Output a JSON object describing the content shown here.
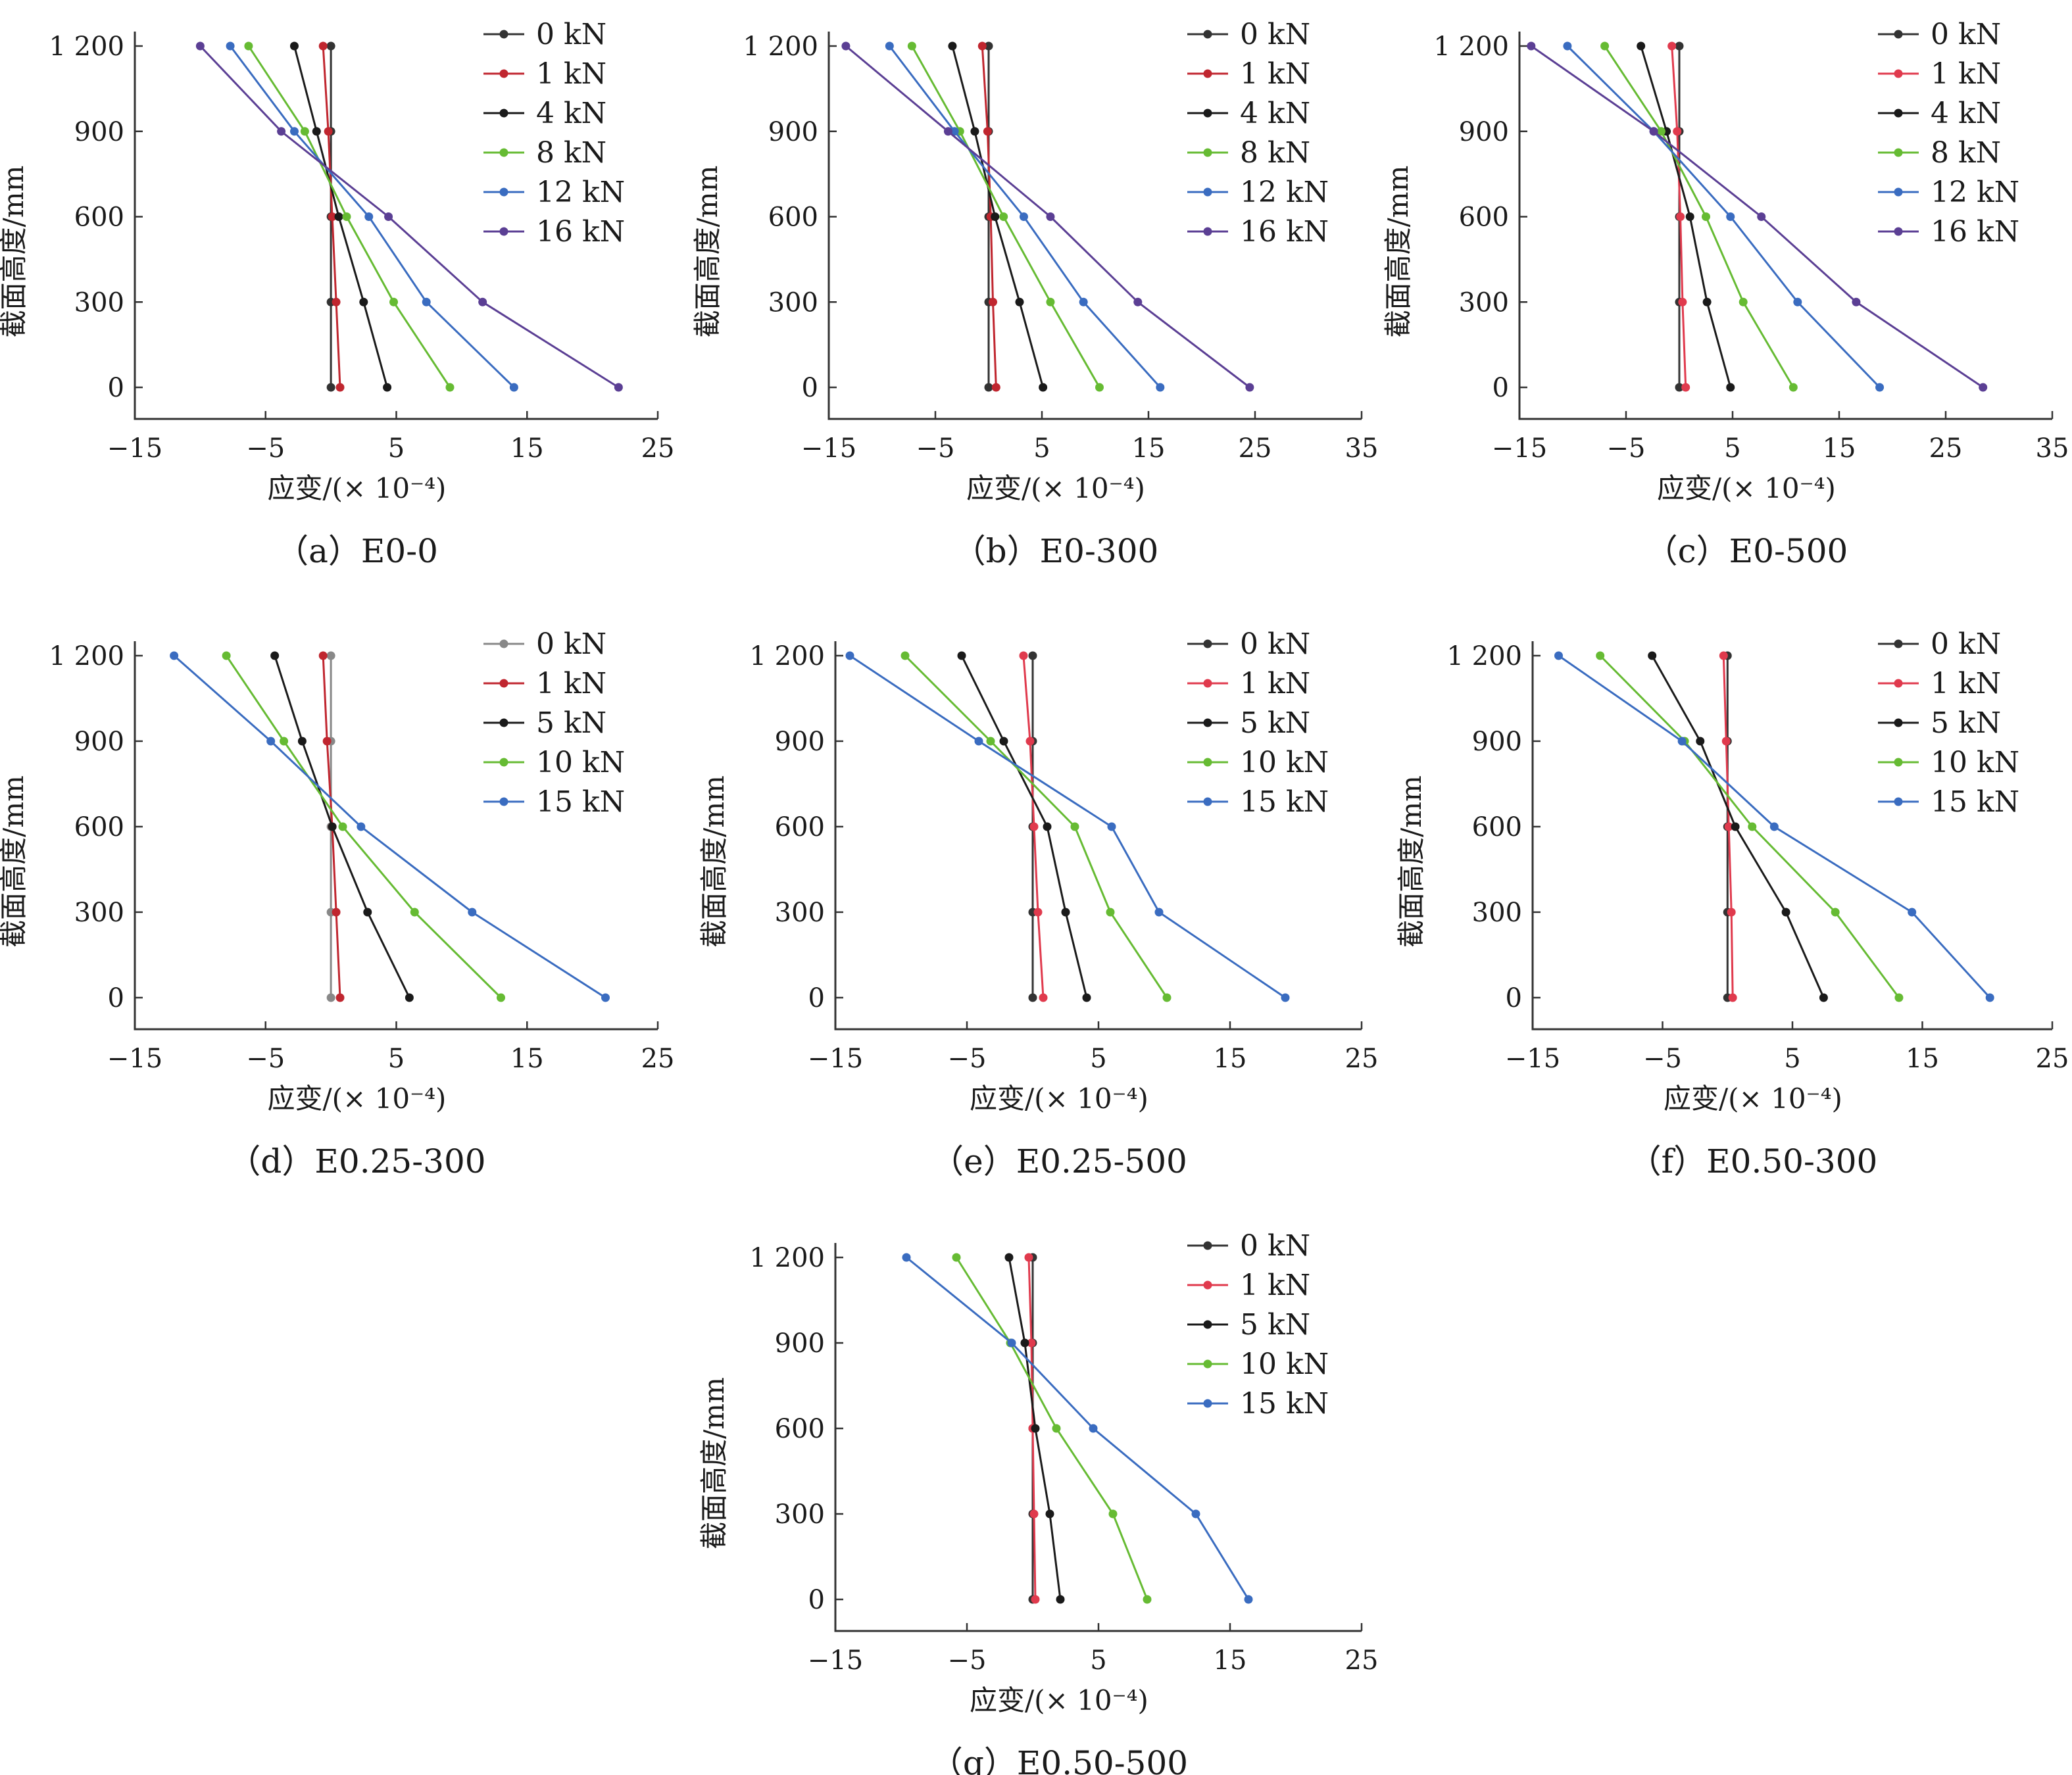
{
  "figure": {
    "x_axis_label": "应变/(× 10⁻⁴)",
    "y_axis_label": "截面高度/mm",
    "series_colors": {
      "0 kN": "#333333",
      "1 kN": "#cc2b3c",
      "load_a": "#1a1a1a",
      "load_b": "#66bb33",
      "load_c": "#3a6cc0",
      "load_d": "#5b3f94",
      "gray": "#888888"
    }
  },
  "chart_data": [
    {
      "type": "line",
      "caption": "（a）E0-0",
      "xlim": [
        -15,
        25
      ],
      "xticks": [
        -15,
        -5,
        5,
        15,
        25
      ],
      "xtick_labels": [
        "−15",
        "−5",
        "5",
        "15",
        "25"
      ],
      "ylim": [
        0,
        1200
      ],
      "yticks": [
        0,
        300,
        600,
        900,
        1200
      ],
      "ytick_labels": [
        "0",
        "300",
        "600",
        "900",
        "1 200"
      ],
      "x_label": "应变/(× 10⁻⁴)",
      "y_label": "截面高度/mm",
      "legend_position": "top-right",
      "series": [
        {
          "name": "0 kN",
          "color": "#333333",
          "x": [
            0.0,
            0.0,
            0.0,
            0.0,
            0.0
          ],
          "y": [
            0,
            300,
            600,
            900,
            1200
          ]
        },
        {
          "name": "1 kN",
          "color": "#c0262f",
          "x": [
            0.7,
            0.4,
            0.1,
            -0.2,
            -0.6
          ],
          "y": [
            0,
            300,
            600,
            900,
            1200
          ]
        },
        {
          "name": "4 kN",
          "color": "#1a1a1a",
          "x": [
            4.3,
            2.5,
            0.6,
            -1.1,
            -2.8
          ],
          "y": [
            0,
            300,
            600,
            900,
            1200
          ]
        },
        {
          "name": "8 kN",
          "color": "#66bb33",
          "x": [
            9.1,
            4.8,
            1.2,
            -2.0,
            -6.3
          ],
          "y": [
            0,
            300,
            600,
            900,
            1200
          ]
        },
        {
          "name": "12 kN",
          "color": "#3a6cc0",
          "x": [
            14.0,
            7.3,
            2.9,
            -2.8,
            -7.7
          ],
          "y": [
            0,
            300,
            600,
            900,
            1200
          ]
        },
        {
          "name": "16 kN",
          "color": "#5b3f94",
          "x": [
            22.0,
            11.6,
            4.4,
            -3.8,
            -10.0
          ],
          "y": [
            0,
            300,
            600,
            900,
            1200
          ]
        }
      ]
    },
    {
      "type": "line",
      "caption": "（b）E0-300",
      "xlim": [
        -15,
        35
      ],
      "xticks": [
        -15,
        -5,
        5,
        15,
        25,
        35
      ],
      "xtick_labels": [
        "−15",
        "−5",
        "5",
        "15",
        "25",
        "35"
      ],
      "ylim": [
        0,
        1200
      ],
      "yticks": [
        0,
        300,
        600,
        900,
        1200
      ],
      "ytick_labels": [
        "0",
        "300",
        "600",
        "900",
        "1 200"
      ],
      "x_label": "应变/(× 10⁻⁴)",
      "y_label": "截面高度/mm",
      "legend_position": "top-right",
      "series": [
        {
          "name": "0 kN",
          "color": "#333333",
          "x": [
            0.0,
            0.0,
            0.0,
            0.0,
            0.0
          ],
          "y": [
            0,
            300,
            600,
            900,
            1200
          ]
        },
        {
          "name": "1 kN",
          "color": "#c0262f",
          "x": [
            0.7,
            0.4,
            0.2,
            -0.1,
            -0.6
          ],
          "y": [
            0,
            300,
            600,
            900,
            1200
          ]
        },
        {
          "name": "4 kN",
          "color": "#1a1a1a",
          "x": [
            5.1,
            2.9,
            0.6,
            -1.3,
            -3.4
          ],
          "y": [
            0,
            300,
            600,
            900,
            1200
          ]
        },
        {
          "name": "8 kN",
          "color": "#66bb33",
          "x": [
            10.4,
            5.8,
            1.4,
            -2.7,
            -7.2
          ],
          "y": [
            0,
            300,
            600,
            900,
            1200
          ]
        },
        {
          "name": "12 kN",
          "color": "#3a6cc0",
          "x": [
            16.1,
            8.9,
            3.3,
            -3.2,
            -9.3
          ],
          "y": [
            0,
            300,
            600,
            900,
            1200
          ]
        },
        {
          "name": "16 kN",
          "color": "#5b3f94",
          "x": [
            24.5,
            14.0,
            5.8,
            -3.8,
            -13.4
          ],
          "y": [
            0,
            300,
            600,
            900,
            1200
          ]
        }
      ]
    },
    {
      "type": "line",
      "caption": "（c）E0-500",
      "xlim": [
        -15,
        35
      ],
      "xticks": [
        -15,
        -5,
        5,
        15,
        25,
        35
      ],
      "xtick_labels": [
        "−15",
        "−5",
        "5",
        "15",
        "25",
        "35"
      ],
      "ylim": [
        0,
        1200
      ],
      "yticks": [
        0,
        300,
        600,
        900,
        1200
      ],
      "ytick_labels": [
        "0",
        "300",
        "600",
        "900",
        "1 200"
      ],
      "x_label": "应变/(× 10⁻⁴)",
      "y_label": "截面高度/mm",
      "legend_position": "top-right",
      "series": [
        {
          "name": "0 kN",
          "color": "#333333",
          "x": [
            0.0,
            0.0,
            0.0,
            0.0,
            0.0
          ],
          "y": [
            0,
            300,
            600,
            900,
            1200
          ]
        },
        {
          "name": "1 kN",
          "color": "#e03a4d",
          "x": [
            0.6,
            0.3,
            0.1,
            -0.2,
            -0.7
          ],
          "y": [
            0,
            300,
            600,
            900,
            1200
          ]
        },
        {
          "name": "4 kN",
          "color": "#1a1a1a",
          "x": [
            4.8,
            2.6,
            1.0,
            -1.2,
            -3.6
          ],
          "y": [
            0,
            300,
            600,
            900,
            1200
          ]
        },
        {
          "name": "8 kN",
          "color": "#66bb33",
          "x": [
            10.7,
            6.0,
            2.5,
            -1.7,
            -7.0
          ],
          "y": [
            0,
            300,
            600,
            900,
            1200
          ]
        },
        {
          "name": "12 kN",
          "color": "#3a6cc0",
          "x": [
            18.8,
            11.1,
            4.8,
            -2.4,
            -10.5
          ],
          "y": [
            0,
            300,
            600,
            900,
            1200
          ]
        },
        {
          "name": "16 kN",
          "color": "#5b3f94",
          "x": [
            28.5,
            16.6,
            7.7,
            -2.4,
            -13.9
          ],
          "y": [
            0,
            300,
            600,
            900,
            1200
          ]
        }
      ]
    },
    {
      "type": "line",
      "caption": "（d）E0.25-300",
      "xlim": [
        -15,
        25
      ],
      "xticks": [
        -15,
        -5,
        5,
        15,
        25
      ],
      "xtick_labels": [
        "−15",
        "−5",
        "5",
        "15",
        "25"
      ],
      "ylim": [
        0,
        1200
      ],
      "yticks": [
        0,
        300,
        600,
        900,
        1200
      ],
      "ytick_labels": [
        "0",
        "300",
        "600",
        "900",
        "1 200"
      ],
      "x_label": "应变/(× 10⁻⁴)",
      "y_label": "截面高度/mm",
      "legend_position": "top-right",
      "series": [
        {
          "name": "0 kN",
          "color": "#888888",
          "x": [
            0.0,
            0.0,
            0.0,
            0.0,
            0.0
          ],
          "y": [
            0,
            300,
            600,
            900,
            1200
          ]
        },
        {
          "name": "1 kN",
          "color": "#c0262f",
          "x": [
            0.7,
            0.4,
            0.1,
            -0.3,
            -0.6
          ],
          "y": [
            0,
            300,
            600,
            900,
            1200
          ]
        },
        {
          "name": "5 kN",
          "color": "#1a1a1a",
          "x": [
            6.0,
            2.8,
            0.1,
            -2.2,
            -4.3
          ],
          "y": [
            0,
            300,
            600,
            900,
            1200
          ]
        },
        {
          "name": "10 kN",
          "color": "#66bb33",
          "x": [
            13.0,
            6.4,
            0.9,
            -3.6,
            -8.0
          ],
          "y": [
            0,
            300,
            600,
            900,
            1200
          ]
        },
        {
          "name": "15 kN",
          "color": "#3a6cc0",
          "x": [
            21.0,
            10.8,
            2.3,
            -4.6,
            -12.0
          ],
          "y": [
            0,
            300,
            600,
            900,
            1200
          ]
        }
      ]
    },
    {
      "type": "line",
      "caption": "（e）E0.25-500",
      "xlim": [
        -15,
        25
      ],
      "xticks": [
        -15,
        -5,
        5,
        15,
        25
      ],
      "xtick_labels": [
        "−15",
        "−5",
        "5",
        "15",
        "25"
      ],
      "ylim": [
        0,
        1200
      ],
      "yticks": [
        0,
        300,
        600,
        900,
        1200
      ],
      "ytick_labels": [
        "0",
        "300",
        "600",
        "900",
        "1 200"
      ],
      "x_label": "应变/(× 10⁻⁴)",
      "y_label": "截面高度/mm",
      "legend_position": "top-right",
      "series": [
        {
          "name": "0 kN",
          "color": "#333333",
          "x": [
            0.0,
            0.0,
            0.0,
            0.0,
            0.0
          ],
          "y": [
            0,
            300,
            600,
            900,
            1200
          ]
        },
        {
          "name": "1 kN",
          "color": "#e03a4d",
          "x": [
            0.8,
            0.4,
            0.1,
            -0.2,
            -0.7
          ],
          "y": [
            0,
            300,
            600,
            900,
            1200
          ]
        },
        {
          "name": "5 kN",
          "color": "#1a1a1a",
          "x": [
            4.1,
            2.5,
            1.1,
            -2.2,
            -5.4
          ],
          "y": [
            0,
            300,
            600,
            900,
            1200
          ]
        },
        {
          "name": "10 kN",
          "color": "#66bb33",
          "x": [
            10.2,
            5.9,
            3.2,
            -3.2,
            -9.7
          ],
          "y": [
            0,
            300,
            600,
            900,
            1200
          ]
        },
        {
          "name": "15 kN",
          "color": "#3a6cc0",
          "x": [
            19.2,
            9.6,
            6.0,
            -4.1,
            -13.9
          ],
          "y": [
            0,
            300,
            600,
            900,
            1200
          ]
        }
      ]
    },
    {
      "type": "line",
      "caption": "（f）E0.50-300",
      "xlim": [
        -15,
        25
      ],
      "xticks": [
        -15,
        -5,
        5,
        15,
        25
      ],
      "xtick_labels": [
        "−15",
        "−5",
        "5",
        "15",
        "25"
      ],
      "ylim": [
        0,
        1200
      ],
      "yticks": [
        0,
        300,
        600,
        900,
        1200
      ],
      "ytick_labels": [
        "0",
        "300",
        "600",
        "900",
        "1 200"
      ],
      "x_label": "应变/(× 10⁻⁴)",
      "y_label": "截面高度/mm",
      "legend_position": "top-right",
      "series": [
        {
          "name": "0 kN",
          "color": "#333333",
          "x": [
            0.0,
            0.0,
            0.0,
            0.0,
            0.0
          ],
          "y": [
            0,
            300,
            600,
            900,
            1200
          ]
        },
        {
          "name": "1 kN",
          "color": "#e03a4d",
          "x": [
            0.4,
            0.3,
            0.1,
            -0.1,
            -0.3
          ],
          "y": [
            0,
            300,
            600,
            900,
            1200
          ]
        },
        {
          "name": "5 kN",
          "color": "#1a1a1a",
          "x": [
            7.4,
            4.5,
            0.6,
            -2.1,
            -5.8
          ],
          "y": [
            0,
            300,
            600,
            900,
            1200
          ]
        },
        {
          "name": "10 kN",
          "color": "#66bb33",
          "x": [
            13.2,
            8.3,
            1.9,
            -3.3,
            -9.8
          ],
          "y": [
            0,
            300,
            600,
            900,
            1200
          ]
        },
        {
          "name": "15 kN",
          "color": "#3a6cc0",
          "x": [
            20.2,
            14.2,
            3.6,
            -3.5,
            -13.0
          ],
          "y": [
            0,
            300,
            600,
            900,
            1200
          ]
        }
      ]
    },
    {
      "type": "line",
      "caption": "（g）E0.50-500",
      "xlim": [
        -15,
        25
      ],
      "xticks": [
        -15,
        -5,
        5,
        15,
        25
      ],
      "xtick_labels": [
        "−15",
        "−5",
        "5",
        "15",
        "25"
      ],
      "ylim": [
        0,
        1200
      ],
      "yticks": [
        0,
        300,
        600,
        900,
        1200
      ],
      "ytick_labels": [
        "0",
        "300",
        "600",
        "900",
        "1 200"
      ],
      "x_label": "应变/(× 10⁻⁴)",
      "y_label": "截面高度/mm",
      "legend_position": "top-right",
      "series": [
        {
          "name": "0 kN",
          "color": "#333333",
          "x": [
            0.0,
            0.0,
            0.0,
            0.0,
            0.0
          ],
          "y": [
            0,
            300,
            600,
            900,
            1200
          ]
        },
        {
          "name": "1 kN",
          "color": "#e03a4d",
          "x": [
            0.2,
            0.1,
            0.0,
            -0.1,
            -0.3
          ],
          "y": [
            0,
            300,
            600,
            900,
            1200
          ]
        },
        {
          "name": "5 kN",
          "color": "#1a1a1a",
          "x": [
            2.1,
            1.3,
            0.2,
            -0.6,
            -1.8
          ],
          "y": [
            0,
            300,
            600,
            900,
            1200
          ]
        },
        {
          "name": "10 kN",
          "color": "#66bb33",
          "x": [
            8.7,
            6.1,
            1.8,
            -1.7,
            -5.8
          ],
          "y": [
            0,
            300,
            600,
            900,
            1200
          ]
        },
        {
          "name": "15 kN",
          "color": "#3a6cc0",
          "x": [
            16.4,
            12.4,
            4.6,
            -1.6,
            -9.6
          ],
          "y": [
            0,
            300,
            600,
            900,
            1200
          ]
        }
      ]
    }
  ]
}
